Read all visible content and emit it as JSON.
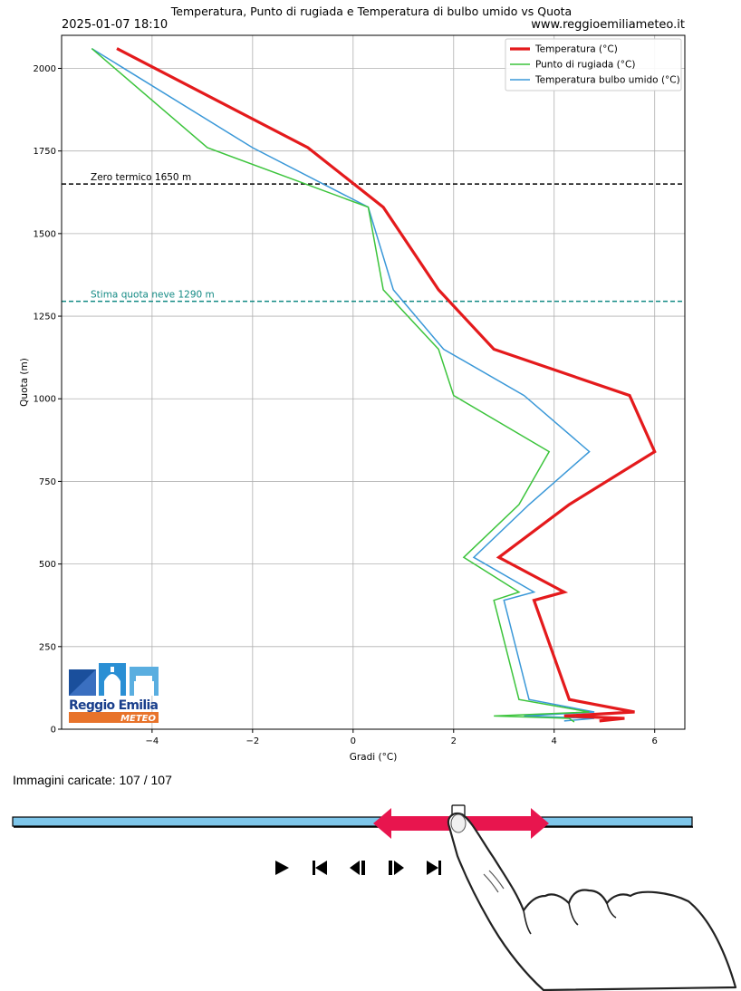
{
  "chart_data": {
    "type": "line",
    "title": "Temperatura, Punto di rugiada e Temperatura di bulbo umido vs Quota",
    "timestamp": "2025-01-07 18:10",
    "source": "www.reggioemiliameteo.it",
    "xlabel": "Gradi (°C)",
    "ylabel": "Quota (m)",
    "xlim": [
      -5.8,
      6.6
    ],
    "ylim": [
      0,
      2100
    ],
    "xticks": [
      -4,
      -2,
      0,
      2,
      4,
      6
    ],
    "yticks": [
      0,
      250,
      500,
      750,
      1000,
      1250,
      1500,
      1750,
      2000
    ],
    "grid": true,
    "legend_position": "top-right",
    "series": [
      {
        "name": "Temperatura (°C)",
        "color": "#e41a1c",
        "points": [
          [
            -4.7,
            2060
          ],
          [
            -0.9,
            1760
          ],
          [
            0.6,
            1580
          ],
          [
            1.7,
            1330
          ],
          [
            2.8,
            1150
          ],
          [
            5.5,
            1010
          ],
          [
            6.0,
            840
          ],
          [
            4.3,
            680
          ],
          [
            2.9,
            520
          ],
          [
            4.2,
            415
          ],
          [
            3.6,
            390
          ],
          [
            4.3,
            90
          ],
          [
            5.6,
            52
          ],
          [
            4.2,
            40
          ],
          [
            5.4,
            33
          ],
          [
            4.9,
            25
          ]
        ]
      },
      {
        "name": "Punto di rugiada (°C)",
        "color": "#3cc43c",
        "points": [
          [
            -5.2,
            2060
          ],
          [
            -2.9,
            1760
          ],
          [
            0.3,
            1580
          ],
          [
            0.6,
            1330
          ],
          [
            1.7,
            1150
          ],
          [
            2.0,
            1010
          ],
          [
            3.9,
            840
          ],
          [
            3.3,
            680
          ],
          [
            2.2,
            520
          ],
          [
            3.3,
            415
          ],
          [
            2.8,
            390
          ],
          [
            3.3,
            90
          ],
          [
            4.7,
            52
          ],
          [
            2.8,
            40
          ],
          [
            4.3,
            33
          ],
          [
            4.4,
            22
          ]
        ]
      },
      {
        "name": "Temperatura bulbo umido (°C)",
        "color": "#3a98d8",
        "points": [
          [
            -5.2,
            2060
          ],
          [
            -2.0,
            1760
          ],
          [
            0.3,
            1580
          ],
          [
            0.8,
            1330
          ],
          [
            1.8,
            1150
          ],
          [
            3.4,
            1010
          ],
          [
            4.7,
            840
          ],
          [
            3.5,
            680
          ],
          [
            2.4,
            520
          ],
          [
            3.6,
            415
          ],
          [
            3.0,
            390
          ],
          [
            3.5,
            90
          ],
          [
            4.8,
            52
          ],
          [
            3.4,
            40
          ],
          [
            4.8,
            33
          ],
          [
            4.2,
            25
          ]
        ]
      }
    ],
    "annotations": [
      {
        "label": "Zero termico 1650 m",
        "y": 1650,
        "color": "#000000",
        "style": "dashed"
      },
      {
        "label": "Stima quota neve 1290 m",
        "y": 1295,
        "color": "#138a84",
        "style": "dashed"
      }
    ]
  },
  "logo": {
    "text": "Reggio Emilia",
    "subtext": "METEO",
    "primary_color": "#1a4f9c",
    "accent_color": "#e8732a"
  },
  "player": {
    "status_text": "Immagini caricate: 107 / 107",
    "loaded": 107,
    "total": 107,
    "current_position": 0.667,
    "track_color": "#7ec6ea",
    "arrow_color": "#e8154e",
    "buttons": [
      {
        "name": "play-icon"
      },
      {
        "name": "first-frame-icon"
      },
      {
        "name": "step-back-icon"
      },
      {
        "name": "step-forward-icon"
      },
      {
        "name": "last-frame-icon"
      }
    ]
  }
}
